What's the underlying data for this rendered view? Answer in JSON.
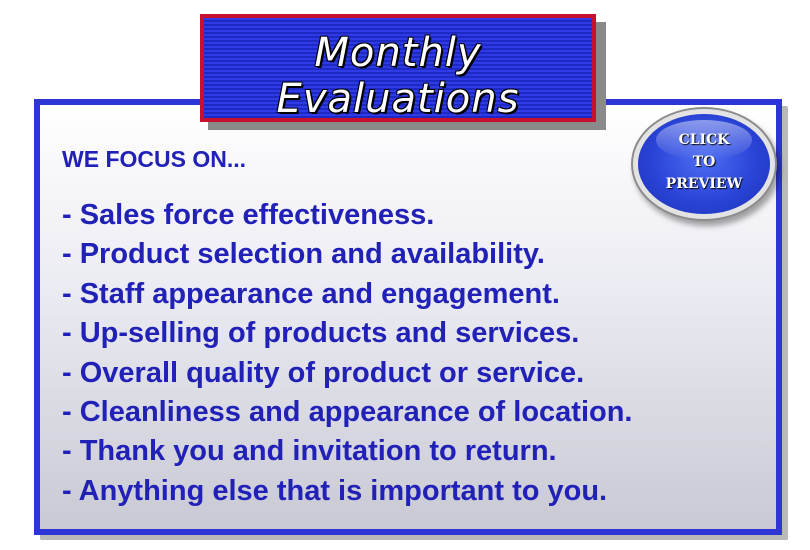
{
  "title": {
    "line1": "Monthly",
    "line2": "Evaluations"
  },
  "heading": "WE FOCUS ON...",
  "focus_items": [
    "- Sales force effectiveness.",
    "- Product selection and availability.",
    "- Staff appearance and engagement.",
    "- Up-selling of products and services.",
    "- Overall quality of product or service.",
    "- Cleanliness and appearance of location.",
    "- Thank you and invitation to return.",
    "- Anything else that is important to you."
  ],
  "preview_button": {
    "line1": "CLICK",
    "line2": "TO",
    "line3": "PREVIEW"
  },
  "colors": {
    "panel_border": "#2e35d6",
    "title_bg": "#2f3be6",
    "title_border": "#c8102e",
    "text": "#2121b8",
    "button": "#2a44d8"
  }
}
